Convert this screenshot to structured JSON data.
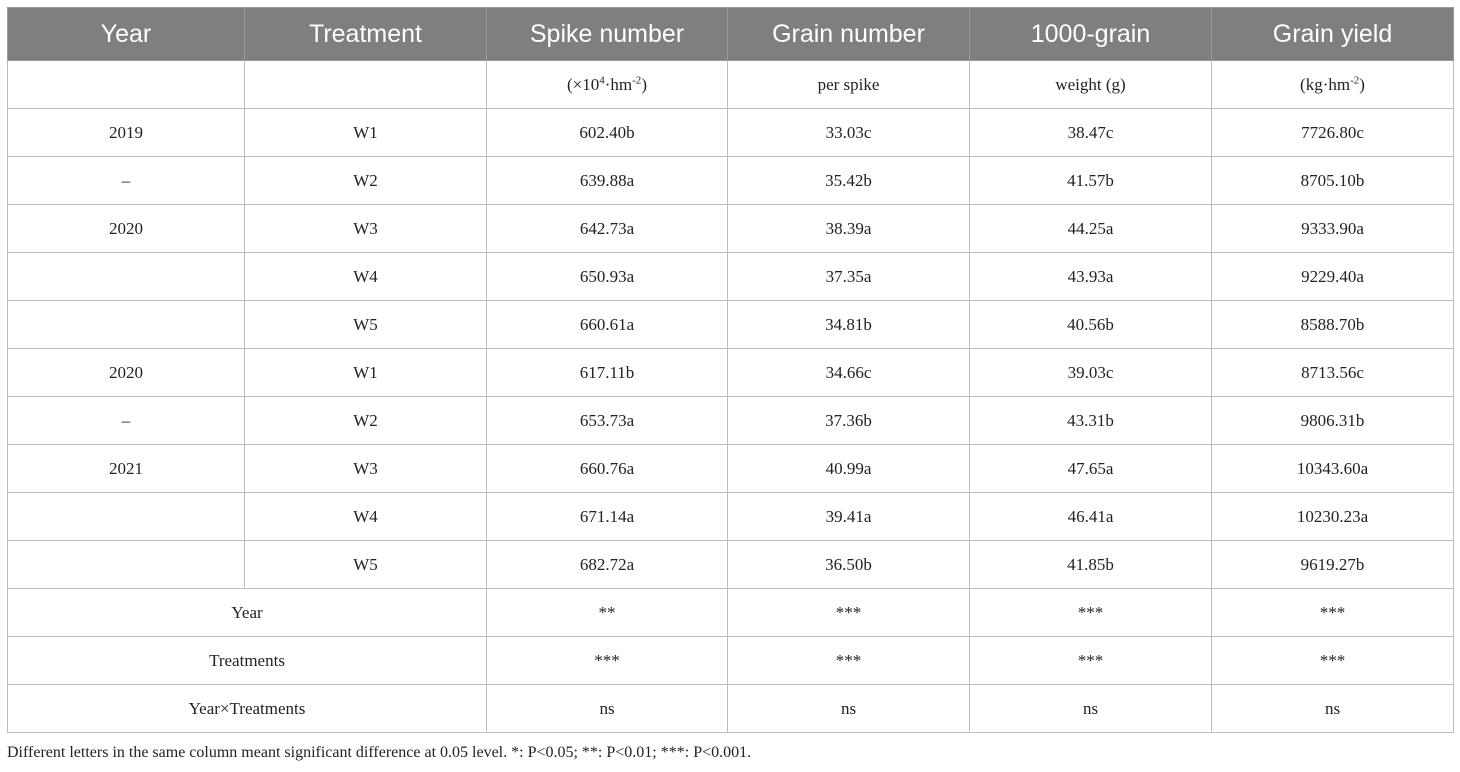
{
  "headers": [
    "Year",
    "Treatment",
    "Spike number",
    "Grain number",
    "1000-grain",
    "Grain yield"
  ],
  "units": {
    "spike_pre": "(×10",
    "spike_sup1": "4",
    "spike_mid": "·hm",
    "spike_sup2": "-2",
    "spike_post": ")",
    "grain_number": "per spike",
    "weight": "weight (g)",
    "yield_pre": "(kg·hm",
    "yield_sup": "-2",
    "yield_post": ")"
  },
  "rows": [
    {
      "year": "2019",
      "treatment": "W1",
      "spike": "602.40b",
      "grain": "33.03c",
      "weight": "38.47c",
      "yield": "7726.80c"
    },
    {
      "year": "–",
      "treatment": "W2",
      "spike": "639.88a",
      "grain": "35.42b",
      "weight": "41.57b",
      "yield": "8705.10b"
    },
    {
      "year": "2020",
      "treatment": "W3",
      "spike": "642.73a",
      "grain": "38.39a",
      "weight": "44.25a",
      "yield": "9333.90a"
    },
    {
      "year": "",
      "treatment": "W4",
      "spike": "650.93a",
      "grain": "37.35a",
      "weight": "43.93a",
      "yield": "9229.40a"
    },
    {
      "year": "",
      "treatment": "W5",
      "spike": "660.61a",
      "grain": "34.81b",
      "weight": "40.56b",
      "yield": "8588.70b"
    },
    {
      "year": "2020",
      "treatment": "W1",
      "spike": "617.11b",
      "grain": "34.66c",
      "weight": "39.03c",
      "yield": "8713.56c"
    },
    {
      "year": "–",
      "treatment": "W2",
      "spike": "653.73a",
      "grain": "37.36b",
      "weight": "43.31b",
      "yield": "9806.31b"
    },
    {
      "year": "2021",
      "treatment": "W3",
      "spike": "660.76a",
      "grain": "40.99a",
      "weight": "47.65a",
      "yield": "10343.60a"
    },
    {
      "year": "",
      "treatment": "W4",
      "spike": "671.14a",
      "grain": "39.41a",
      "weight": "46.41a",
      "yield": "10230.23a"
    },
    {
      "year": "",
      "treatment": "W5",
      "spike": "682.72a",
      "grain": "36.50b",
      "weight": "41.85b",
      "yield": "9619.27b"
    }
  ],
  "anova": [
    {
      "label": "Year",
      "spike": "**",
      "grain": "***",
      "weight": "***",
      "yield": "***"
    },
    {
      "label": "Treatments",
      "spike": "***",
      "grain": "***",
      "weight": "***",
      "yield": "***"
    },
    {
      "label": "Year×Treatments",
      "spike": "ns",
      "grain": "ns",
      "weight": "ns",
      "yield": "ns"
    }
  ],
  "footnote": "Different letters in the same column meant significant difference at 0.05 level. *: P<0.05; **: P<0.01; ***: P<0.001."
}
